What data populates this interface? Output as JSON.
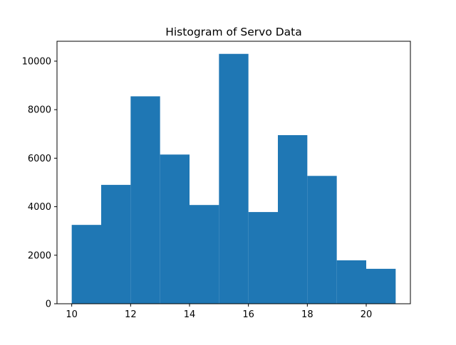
{
  "chart_data": {
    "type": "histogram",
    "title": "Histogram of Servo Data",
    "xlabel": "",
    "ylabel": "",
    "bins": [
      {
        "start": 10,
        "end": 11,
        "count": 3250
      },
      {
        "start": 11,
        "end": 12,
        "count": 4900
      },
      {
        "start": 12,
        "end": 13,
        "count": 8550
      },
      {
        "start": 13,
        "end": 14,
        "count": 6150
      },
      {
        "start": 14,
        "end": 15,
        "count": 4070
      },
      {
        "start": 15,
        "end": 16,
        "count": 10300
      },
      {
        "start": 16,
        "end": 17,
        "count": 3780
      },
      {
        "start": 17,
        "end": 18,
        "count": 6950
      },
      {
        "start": 18,
        "end": 19,
        "count": 5270
      },
      {
        "start": 19,
        "end": 20,
        "count": 1790
      },
      {
        "start": 20,
        "end": 21,
        "count": 1440
      }
    ],
    "xlim": [
      9.5,
      21.5
    ],
    "ylim": [
      0,
      10820
    ],
    "xticks": [
      10,
      12,
      14,
      16,
      18,
      20
    ],
    "xtick_labels": [
      "10",
      "12",
      "14",
      "16",
      "18",
      "20"
    ],
    "yticks": [
      0,
      2000,
      4000,
      6000,
      8000,
      10000
    ],
    "ytick_labels": [
      "0",
      "2000",
      "4000",
      "6000",
      "8000",
      "10000"
    ],
    "bar_color": "#1f77b4",
    "grid": false,
    "legend": "none"
  }
}
